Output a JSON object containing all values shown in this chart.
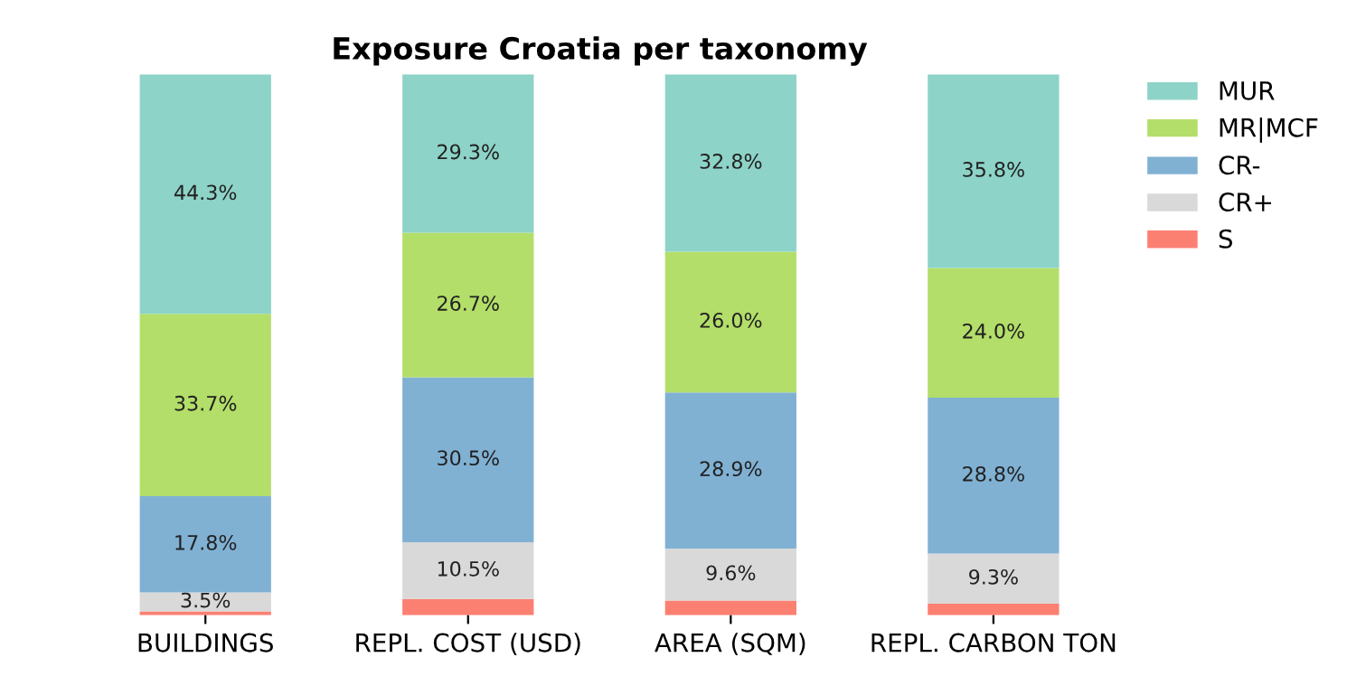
{
  "chart_data": {
    "type": "bar",
    "title": "Exposure Croatia per taxonomy",
    "stacked": true,
    "legend": "top right",
    "tick_labels": "x",
    "grid": false,
    "categories": [
      "BUILDINGS",
      "REPL. COST (USD)",
      "AREA (SQM)",
      "REPL. CARBON TON"
    ],
    "series": [
      {
        "name": "S",
        "color": "#fb8072",
        "values": [
          0.7,
          3.0,
          2.7,
          2.1
        ],
        "value_labels": [
          null,
          null,
          null,
          null
        ]
      },
      {
        "name": "CR+",
        "color": "#d9d9d9",
        "values": [
          3.5,
          10.5,
          9.6,
          9.3
        ],
        "value_labels": [
          "3.5%",
          "10.5%",
          "9.6%",
          "9.3%"
        ]
      },
      {
        "name": "CR-",
        "color": "#80b1d3",
        "values": [
          17.8,
          30.5,
          28.9,
          28.8
        ],
        "value_labels": [
          "17.8%",
          "30.5%",
          "28.9%",
          "28.8%"
        ]
      },
      {
        "name": "MR|MCF",
        "color": "#b3de69",
        "values": [
          33.7,
          26.7,
          26.0,
          24.0
        ],
        "value_labels": [
          "33.7%",
          "26.7%",
          "26.0%",
          "24.0%"
        ]
      },
      {
        "name": "MUR",
        "color": "#8dd3c7",
        "values": [
          44.3,
          29.3,
          32.8,
          35.8
        ],
        "value_labels": [
          "44.3%",
          "29.3%",
          "32.8%",
          "35.8%"
        ]
      }
    ]
  }
}
